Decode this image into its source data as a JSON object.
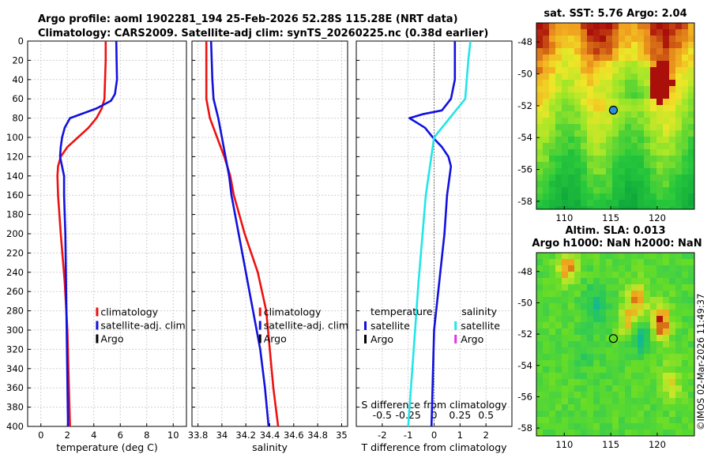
{
  "title": {
    "line1": "Argo profile: aoml 1902281_194 25-Feb-2026 52.28S 115.28E (NRT data)",
    "line2": "Climatology: CARS2009. Satellite-adj clim: synTS_20260225.nc (0.38d earlier)"
  },
  "credit": "©IMOS 02-Mar-2026 11:49:37",
  "colors": {
    "climatology": "#ee1111",
    "satellite": "#1111dd",
    "argo": "#000000",
    "sal_sat": "#22e6e6",
    "sal_argo": "#e633e6"
  },
  "chart_data": [
    {
      "type": "line",
      "title": "",
      "xlabel": "temperature (deg C)",
      "ylabel": "",
      "xlim": [
        -1,
        11
      ],
      "ylim": [
        400,
        0
      ],
      "xticks": [
        "0",
        "2",
        "4",
        "6",
        "8",
        "10"
      ],
      "yticks": [
        "0",
        "20",
        "40",
        "60",
        "80",
        "100",
        "120",
        "140",
        "160",
        "180",
        "200",
        "220",
        "240",
        "260",
        "280",
        "300",
        "320",
        "340",
        "360",
        "380",
        "400"
      ],
      "grid": true,
      "legend": {
        "placement": "lower-right",
        "entries": [
          "climatology",
          "satellite-adj. clim",
          "Argo"
        ]
      },
      "series": [
        {
          "name": "climatology",
          "depth": [
            0,
            20,
            40,
            60,
            70,
            80,
            90,
            100,
            110,
            120,
            130,
            140,
            160,
            200,
            250,
            300,
            350,
            400
          ],
          "values": [
            4.9,
            4.9,
            4.85,
            4.8,
            4.6,
            4.2,
            3.6,
            2.8,
            2.0,
            1.5,
            1.3,
            1.25,
            1.3,
            1.5,
            1.8,
            2.0,
            2.1,
            2.2
          ]
        },
        {
          "name": "satellite-adj. clim",
          "depth": [
            0,
            20,
            40,
            55,
            62,
            70,
            80,
            90,
            100,
            110,
            120,
            140,
            160,
            200,
            300,
            400
          ],
          "values": [
            5.7,
            5.72,
            5.75,
            5.6,
            5.3,
            4.2,
            2.2,
            1.8,
            1.6,
            1.5,
            1.45,
            1.75,
            1.75,
            1.85,
            1.95,
            2.05
          ]
        }
      ]
    },
    {
      "type": "line",
      "xlabel": "salinity",
      "xlim": [
        33.75,
        35.05
      ],
      "ylim": [
        400,
        0
      ],
      "xticks": [
        "33.8",
        "34",
        "34.2",
        "34.4",
        "34.6",
        "34.8",
        "35"
      ],
      "grid": true,
      "legend": {
        "placement": "lower-right",
        "entries": [
          "climatology",
          "satellite-adj. clim",
          "Argo"
        ]
      },
      "series": [
        {
          "name": "climatology",
          "depth": [
            0,
            40,
            60,
            80,
            100,
            120,
            140,
            160,
            200,
            240,
            280,
            320,
            360,
            400
          ],
          "values": [
            33.87,
            33.87,
            33.87,
            33.9,
            33.96,
            34.02,
            34.07,
            34.1,
            34.19,
            34.3,
            34.37,
            34.4,
            34.43,
            34.47
          ]
        },
        {
          "name": "satellite-adj. clim",
          "depth": [
            0,
            40,
            60,
            80,
            100,
            120,
            140,
            160,
            200,
            240,
            280,
            320,
            360,
            400
          ],
          "values": [
            33.91,
            33.92,
            33.93,
            33.97,
            34.0,
            34.03,
            34.06,
            34.08,
            34.14,
            34.2,
            34.26,
            34.32,
            34.36,
            34.39
          ]
        }
      ]
    },
    {
      "type": "line",
      "xlabel": "T difference from climatology",
      "top_axis_label": "S difference from climatology",
      "xlim": [
        -3,
        3
      ],
      "ylim": [
        400,
        0
      ],
      "xticks": [
        "-2",
        "-1",
        "0",
        "1",
        "2"
      ],
      "top_ticks": [
        "-0.5",
        "-0.25",
        "0",
        "0.25",
        "0.5"
      ],
      "grid": true,
      "legend": {
        "placement": "lower-center",
        "left_title": "temperature",
        "right_title": "salinity",
        "left_entries": [
          "satellite",
          "Argo"
        ],
        "right_entries": [
          "satellite",
          "Argo"
        ]
      },
      "series": [
        {
          "name": "T satellite",
          "depth": [
            0,
            20,
            40,
            60,
            72,
            76,
            80,
            85,
            90,
            100,
            110,
            120,
            130,
            140,
            160,
            200,
            300,
            400
          ],
          "values": [
            0.8,
            0.8,
            0.8,
            0.65,
            0.3,
            -0.45,
            -0.95,
            -0.65,
            -0.35,
            -0.05,
            0.3,
            0.55,
            0.65,
            0.6,
            0.5,
            0.4,
            0.0,
            -0.1
          ]
        },
        {
          "name": "S satellite",
          "depth": [
            0,
            20,
            60,
            100,
            160,
            250,
            400
          ],
          "values": [
            0.35,
            0.33,
            0.3,
            0.0,
            -0.08,
            -0.15,
            -0.25
          ]
        }
      ]
    },
    {
      "type": "heatmap",
      "title": "sat. SST: 5.76 Argo: 2.04",
      "xlim": [
        107,
        124
      ],
      "ylim": [
        -58.5,
        -46.8
      ],
      "xticks": [
        "110",
        "115",
        "120"
      ],
      "yticks": [
        "-48",
        "-50",
        "-52",
        "-54",
        "-56",
        "-58"
      ],
      "marker": {
        "lon": 115.28,
        "lat": -52.28
      }
    },
    {
      "type": "heatmap",
      "title": "Altim. SLA: 0.013",
      "subtitle": "Argo h1000: NaN h2000: NaN",
      "xlim": [
        107,
        124
      ],
      "ylim": [
        -58.5,
        -46.8
      ],
      "xticks": [
        "110",
        "115",
        "120"
      ],
      "yticks": [
        "-48",
        "-50",
        "-52",
        "-54",
        "-56",
        "-58"
      ],
      "marker": {
        "lon": 115.28,
        "lat": -52.28
      }
    }
  ]
}
